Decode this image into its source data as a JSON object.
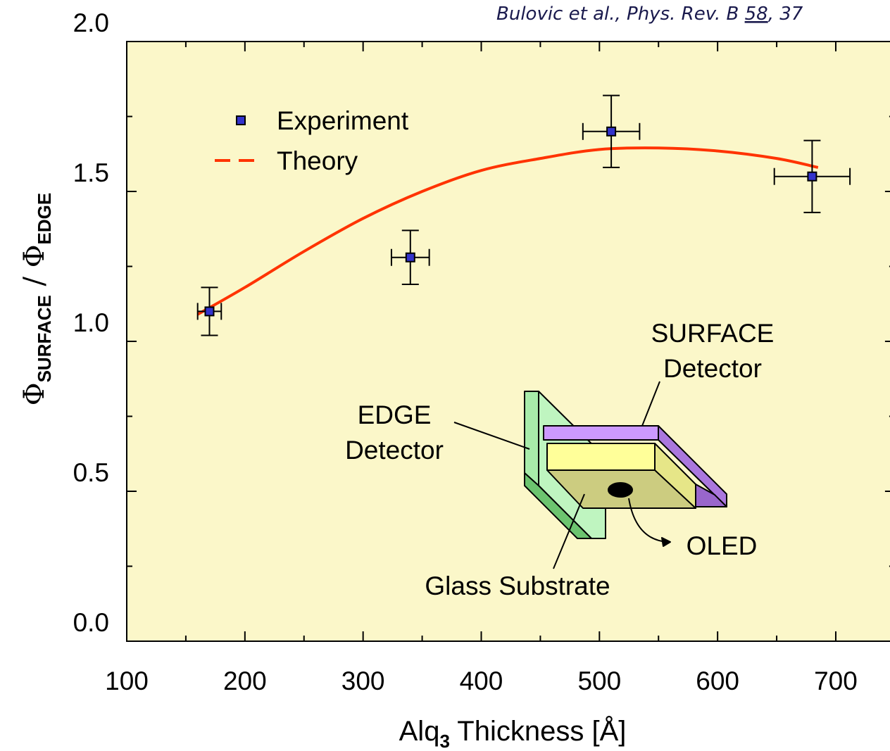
{
  "chart_data": {
    "type": "scatter",
    "citation": {
      "prefix": "Bulovic et al., Phys. Rev. B ",
      "volume": "58",
      "suffix": ", 37"
    },
    "xlabel": {
      "main": "Alq",
      "sub": "3",
      "rest": " Thickness [Å]"
    },
    "ylabel": {
      "phi1": "Φ",
      "sub1": "SURFACE",
      "mid": " / Φ",
      "sub2": "EDGE"
    },
    "xlim": [
      100,
      750
    ],
    "ylim": [
      0,
      2
    ],
    "xticks": [
      100,
      200,
      300,
      400,
      500,
      600,
      700
    ],
    "yticks": [
      {
        "value": 0,
        "label": "0.0"
      },
      0.5,
      {
        "value": 1,
        "label": "1.0"
      },
      1.5,
      {
        "value": 2,
        "label": "2.0"
      }
    ],
    "plot_background": "#fbf7c9",
    "series": [
      {
        "name": "Experiment",
        "type": "scatter",
        "color": "#3333cc",
        "x": [
          170,
          340,
          510,
          680
        ],
        "y": [
          1.1,
          1.28,
          1.7,
          1.55
        ],
        "xerr": [
          10,
          16,
          24,
          32
        ],
        "yerr": [
          0.08,
          0.09,
          0.12,
          0.12
        ]
      },
      {
        "name": "Theory",
        "type": "line",
        "color": "#ff3300",
        "x": [
          160,
          200,
          250,
          300,
          350,
          400,
          450,
          500,
          550,
          600,
          650,
          685
        ],
        "y": [
          1.09,
          1.18,
          1.3,
          1.41,
          1.5,
          1.57,
          1.61,
          1.64,
          1.645,
          1.635,
          1.61,
          1.58
        ]
      }
    ],
    "inset": {
      "surface1": "SURFACE",
      "surface2": "Detector",
      "edge1": "EDGE",
      "edge2": "Detector",
      "oled": "OLED",
      "glass": "Glass Substrate"
    }
  }
}
